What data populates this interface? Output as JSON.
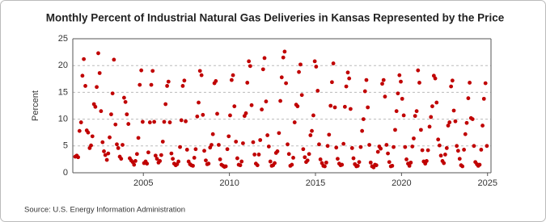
{
  "chart_data": {
    "type": "scatter",
    "title": "Monthly Percent of Industrial Natural Gas Deliveries in Kansas Represented by the Price",
    "y_label": "Percent",
    "source": "Source: U.S. Energy Information Administration",
    "color": "#c00000",
    "grid": true,
    "xlim": [
      2000.9,
      2025.2
    ],
    "ylim": [
      0,
      25
    ],
    "xticks": [
      2005,
      2010,
      2015,
      2020,
      2025
    ],
    "yticks": [
      0,
      5,
      10,
      15,
      20,
      25
    ],
    "x": [
      2001.04,
      2001.13,
      2001.21,
      2001.29,
      2001.38,
      2001.46,
      2001.54,
      2001.63,
      2001.71,
      2001.79,
      2001.88,
      2001.96,
      2002.04,
      2002.13,
      2002.21,
      2002.29,
      2002.38,
      2002.46,
      2002.54,
      2002.63,
      2002.71,
      2002.79,
      2002.88,
      2002.96,
      2003.04,
      2003.13,
      2003.21,
      2003.29,
      2003.38,
      2003.46,
      2003.54,
      2003.63,
      2003.71,
      2003.79,
      2003.88,
      2003.96,
      2004.04,
      2004.13,
      2004.21,
      2004.29,
      2004.38,
      2004.46,
      2004.54,
      2004.63,
      2004.71,
      2004.79,
      2004.88,
      2004.96,
      2005.04,
      2005.13,
      2005.21,
      2005.29,
      2005.38,
      2005.46,
      2005.54,
      2005.63,
      2005.71,
      2005.79,
      2005.88,
      2005.96,
      2006.04,
      2006.13,
      2006.21,
      2006.29,
      2006.38,
      2006.46,
      2006.54,
      2006.63,
      2006.71,
      2006.79,
      2006.88,
      2006.96,
      2007.04,
      2007.13,
      2007.21,
      2007.29,
      2007.38,
      2007.46,
      2007.54,
      2007.63,
      2007.71,
      2007.79,
      2007.88,
      2007.96,
      2008.04,
      2008.13,
      2008.21,
      2008.29,
      2008.38,
      2008.46,
      2008.54,
      2008.63,
      2008.71,
      2008.79,
      2008.88,
      2008.96,
      2009.04,
      2009.13,
      2009.21,
      2009.29,
      2009.38,
      2009.46,
      2009.54,
      2009.63,
      2009.71,
      2009.79,
      2009.88,
      2009.96,
      2010.04,
      2010.13,
      2010.21,
      2010.29,
      2010.38,
      2010.46,
      2010.54,
      2010.63,
      2010.71,
      2010.79,
      2010.88,
      2010.96,
      2011.04,
      2011.13,
      2011.21,
      2011.29,
      2011.38,
      2011.46,
      2011.54,
      2011.63,
      2011.71,
      2011.79,
      2011.88,
      2011.96,
      2012.04,
      2012.13,
      2012.21,
      2012.29,
      2012.38,
      2012.46,
      2012.54,
      2012.63,
      2012.71,
      2012.79,
      2012.88,
      2012.96,
      2013.04,
      2013.13,
      2013.21,
      2013.29,
      2013.38,
      2013.46,
      2013.54,
      2013.63,
      2013.71,
      2013.79,
      2013.88,
      2013.96,
      2014.04,
      2014.13,
      2014.21,
      2014.29,
      2014.38,
      2014.46,
      2014.54,
      2014.63,
      2014.71,
      2014.79,
      2014.88,
      2014.96,
      2015.04,
      2015.13,
      2015.21,
      2015.29,
      2015.38,
      2015.46,
      2015.54,
      2015.63,
      2015.71,
      2015.79,
      2015.88,
      2015.96,
      2016.04,
      2016.13,
      2016.21,
      2016.29,
      2016.38,
      2016.46,
      2016.54,
      2016.63,
      2016.71,
      2016.79,
      2016.88,
      2016.96,
      2017.04,
      2017.13,
      2017.21,
      2017.29,
      2017.38,
      2017.46,
      2017.54,
      2017.63,
      2017.71,
      2017.79,
      2017.88,
      2017.96,
      2018.04,
      2018.13,
      2018.21,
      2018.29,
      2018.38,
      2018.46,
      2018.54,
      2018.63,
      2018.71,
      2018.79,
      2018.88,
      2018.96,
      2019.04,
      2019.13,
      2019.21,
      2019.29,
      2019.38,
      2019.46,
      2019.54,
      2019.63,
      2019.71,
      2019.79,
      2019.88,
      2019.96,
      2020.04,
      2020.13,
      2020.21,
      2020.29,
      2020.38,
      2020.46,
      2020.54,
      2020.63,
      2020.71,
      2020.79,
      2020.88,
      2020.96,
      2021.04,
      2021.13,
      2021.21,
      2021.29,
      2021.38,
      2021.46,
      2021.54,
      2021.63,
      2021.71,
      2021.79,
      2021.88,
      2021.96,
      2022.04,
      2022.13,
      2022.21,
      2022.29,
      2022.38,
      2022.46,
      2022.54,
      2022.63,
      2022.71,
      2022.79,
      2022.88,
      2022.96,
      2023.04,
      2023.13,
      2023.21,
      2023.29,
      2023.38,
      2023.46,
      2023.54,
      2023.63,
      2023.71,
      2023.79,
      2023.88,
      2023.96,
      2024.04,
      2024.13,
      2024.21,
      2024.29,
      2024.38,
      2024.46,
      2024.54,
      2024.63,
      2024.71,
      2024.79,
      2024.88,
      2024.96
    ],
    "values": [
      3.0,
      3.2,
      2.9,
      7.8,
      9.4,
      18.1,
      21.2,
      16.2,
      7.9,
      7.5,
      4.6,
      5.1,
      6.8,
      12.8,
      12.3,
      16.0,
      22.3,
      18.6,
      11.5,
      5.7,
      4.0,
      3.3,
      2.4,
      3.6,
      6.6,
      10.9,
      14.8,
      21.1,
      9.0,
      5.3,
      4.6,
      3.0,
      2.6,
      5.2,
      14.0,
      13.2,
      10.9,
      9.1,
      2.7,
      2.3,
      2.0,
      1.5,
      2.2,
      3.5,
      6.5,
      16.4,
      19.1,
      9.5,
      1.8,
      2.1,
      1.7,
      3.8,
      9.4,
      16.4,
      19.0,
      9.5,
      3.2,
      2.6,
      1.9,
      2.2,
      3.3,
      5.8,
      9.5,
      12.8,
      16.2,
      17.0,
      9.4,
      3.6,
      2.6,
      1.7,
      1.4,
      1.6,
      2.1,
      4.8,
      9.8,
      16.2,
      17.2,
      9.6,
      4.3,
      2.1,
      1.6,
      1.4,
      1.3,
      2.8,
      4.4,
      10.5,
      13.1,
      19.0,
      18.2,
      10.8,
      4.1,
      2.3,
      1.6,
      1.7,
      4.7,
      5.2,
      7.2,
      16.7,
      17.1,
      11.0,
      5.2,
      2.5,
      1.5,
      1.3,
      1.1,
      1.2,
      4.4,
      6.8,
      10.7,
      17.3,
      18.2,
      12.4,
      5.8,
      2.7,
      1.5,
      1.4,
      2.1,
      5.5,
      10.6,
      11.1,
      16.8,
      20.8,
      19.9,
      12.6,
      5.7,
      3.4,
      1.7,
      1.4,
      3.4,
      6.1,
      11.8,
      19.3,
      21.4,
      13.3,
      7.0,
      4.9,
      2.1,
      1.3,
      1.4,
      1.8,
      3.7,
      4.0,
      7.4,
      13.4,
      17.8,
      21.5,
      22.6,
      16.7,
      5.3,
      3.5,
      1.3,
      1.5,
      2.8,
      9.4,
      12.7,
      12.4,
      18.8,
      20.2,
      14.5,
      4.4,
      2.9,
      2.0,
      2.3,
      3.5,
      7.0,
      7.8,
      10.7,
      20.8,
      19.8,
      15.3,
      5.3,
      2.5,
      1.8,
      1.3,
      1.2,
      1.9,
      5.0,
      7.1,
      12.5,
      16.9,
      20.4,
      12.2,
      4.7,
      2.6,
      1.7,
      1.4,
      1.5,
      5.4,
      12.3,
      16.1,
      18.7,
      17.6,
      11.9,
      4.6,
      2.7,
      1.6,
      1.2,
      1.3,
      2.0,
      4.8,
      7.8,
      10.0,
      15.2,
      17.3,
      12.2,
      5.2,
      1.9,
      1.2,
      1.0,
      1.5,
      1.4,
      3.9,
      4.9,
      4.5,
      16.6,
      17.3,
      14.2,
      5.2,
      3.6,
      2.0,
      1.2,
      1.3,
      4.8,
      8.0,
      11.5,
      14.8,
      18.2,
      17.0,
      13.8,
      10.7,
      4.8,
      2.5,
      1.7,
      1.3,
      1.9,
      4.9,
      6.4,
      10.6,
      11.5,
      19.1,
      16.8,
      8.0,
      4.2,
      2.1,
      1.7,
      2.2,
      4.2,
      8.6,
      10.4,
      12.4,
      18.1,
      17.6,
      13.1,
      6.2,
      5.1,
      3.2,
      2.2,
      1.8,
      3.4,
      4.6,
      8.8,
      9.4,
      16.1,
      17.2,
      11.6,
      9.6,
      5.0,
      4.1,
      2.6,
      1.4,
      1.2,
      4.3,
      7.2,
      9.3,
      13.9,
      16.8,
      10.2,
      10.0,
      5.0,
      2.0,
      1.6,
      1.3,
      1.5,
      4.3,
      8.8,
      13.8,
      16.7,
      5.0
    ]
  }
}
